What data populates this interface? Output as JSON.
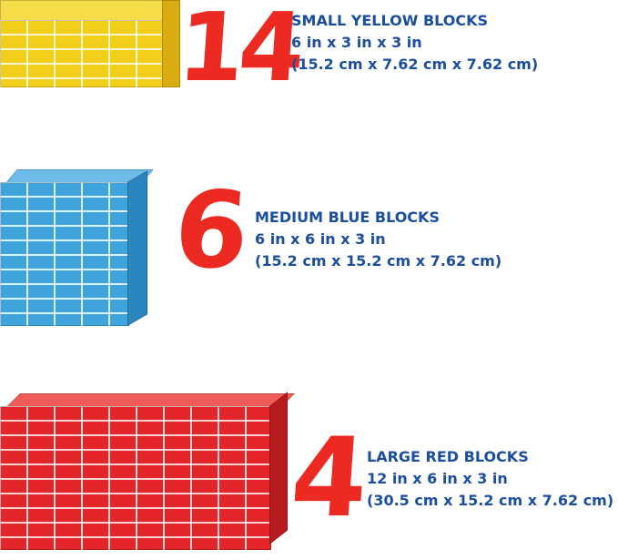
{
  "items": [
    {
      "count": "14",
      "name": "SMALL YELLOW BLOCKS",
      "size_in": "6 in x 3 in x 3 in",
      "size_cm": "(15.2 cm x 7.62 cm x 7.62 cm)",
      "color": "#f2cf1a"
    },
    {
      "count": "6",
      "name": "MEDIUM BLUE BLOCKS",
      "size_in": "6 in x 6 in x 3 in",
      "size_cm": "(15.2 cm x 15.2 cm x 7.62 cm)",
      "color": "#3fa3dc"
    },
    {
      "count": "4",
      "name": "LARGE RED BLOCKS",
      "size_in": "12 in x 6 in x 3 in",
      "size_cm": "(30.5 cm x 15.2 cm x 7.62 cm)",
      "color": "#e4262a"
    }
  ],
  "colors": {
    "number": "#ec2a22",
    "text": "#1c4ea0"
  }
}
